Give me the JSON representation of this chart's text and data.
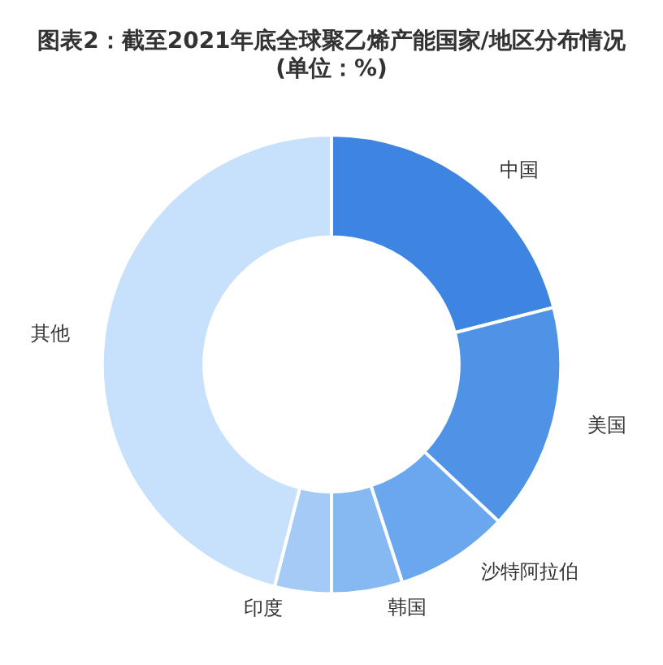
{
  "chart_data": {
    "type": "donut",
    "title": "图表2：截至2021年底全球聚乙烯产能国家/地区分布情况\n(单位：%)",
    "categories": [
      "中国",
      "美国",
      "沙特阿拉伯",
      "韩国",
      "印度",
      "其他"
    ],
    "values": [
      21,
      16,
      8,
      5,
      4,
      46
    ],
    "colors": [
      "#3d85e0",
      "#4f93e6",
      "#6ba7ee",
      "#86b9f2",
      "#a3cbf6",
      "#c7e0fb"
    ],
    "legend": false
  }
}
